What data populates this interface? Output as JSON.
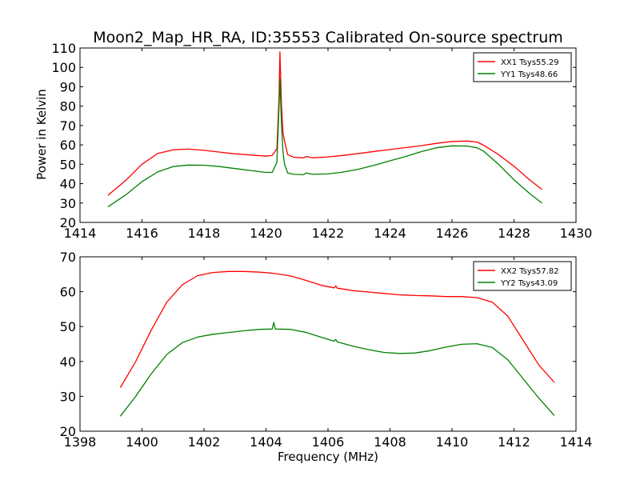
{
  "chart_data": [
    {
      "type": "line",
      "title": "Moon2_Map_HR_RA, ID:35553 Calibrated On-source spectrum",
      "xlabel": "",
      "ylabel": "Power in Kelvin",
      "xlim": [
        1414,
        1430
      ],
      "ylim": [
        20,
        110
      ],
      "xticks": [
        1414,
        1416,
        1418,
        1420,
        1422,
        1424,
        1426,
        1428,
        1430
      ],
      "yticks": [
        20,
        30,
        40,
        50,
        60,
        70,
        80,
        90,
        100,
        110
      ],
      "legend": "top-right",
      "series": [
        {
          "name": "XX1 Tsys55.29",
          "color": "#ff0000",
          "x": [
            1414.9,
            1415.5,
            1416.0,
            1416.5,
            1417.0,
            1417.5,
            1418.0,
            1418.5,
            1419.0,
            1419.5,
            1420.0,
            1420.2,
            1420.35,
            1420.42,
            1420.45,
            1420.5,
            1420.55,
            1420.6,
            1420.7,
            1420.9,
            1421.2,
            1421.3,
            1421.5,
            1422.0,
            1422.5,
            1423.0,
            1423.5,
            1424.0,
            1424.5,
            1425.0,
            1425.5,
            1426.0,
            1426.5,
            1426.8,
            1427.0,
            1427.5,
            1428.0,
            1428.5,
            1428.9
          ],
          "y": [
            34,
            42,
            50,
            55.5,
            57.5,
            57.8,
            57.2,
            56.3,
            55.4,
            54.8,
            54.2,
            54.5,
            58,
            85,
            108,
            80,
            66,
            62,
            55,
            53.6,
            53.3,
            54,
            53.3,
            53.8,
            54.6,
            55.6,
            56.6,
            57.6,
            58.6,
            59.6,
            60.8,
            61.8,
            62,
            61.5,
            60,
            55,
            49,
            42,
            37
          ]
        },
        {
          "name": "YY1 Tsys48.66",
          "color": "#008000",
          "x": [
            1414.9,
            1415.5,
            1416.0,
            1416.5,
            1417.0,
            1417.5,
            1418.0,
            1418.5,
            1419.0,
            1419.5,
            1420.0,
            1420.2,
            1420.35,
            1420.42,
            1420.45,
            1420.5,
            1420.55,
            1420.6,
            1420.7,
            1420.9,
            1421.2,
            1421.3,
            1421.5,
            1422.0,
            1422.5,
            1423.0,
            1423.5,
            1424.0,
            1424.5,
            1425.0,
            1425.5,
            1426.0,
            1426.5,
            1426.8,
            1427.0,
            1427.5,
            1428.0,
            1428.5,
            1428.9
          ],
          "y": [
            28,
            34.5,
            41,
            46,
            48.8,
            49.6,
            49.5,
            48.8,
            47.8,
            46.8,
            45.8,
            45.8,
            51,
            80,
            94,
            70,
            56,
            50,
            45.5,
            44.8,
            44.6,
            45.5,
            44.8,
            45,
            46,
            47.5,
            49.5,
            51.8,
            54,
            56.5,
            58.5,
            59.5,
            59.4,
            58.5,
            57,
            50,
            42,
            35,
            30
          ]
        }
      ]
    },
    {
      "type": "line",
      "title": "",
      "xlabel": "Frequency (MHz)",
      "ylabel": "",
      "xlim": [
        1398,
        1414
      ],
      "ylim": [
        20,
        70
      ],
      "xticks": [
        1398,
        1400,
        1402,
        1404,
        1406,
        1408,
        1410,
        1412,
        1414
      ],
      "yticks": [
        20,
        30,
        40,
        50,
        60,
        70
      ],
      "legend": "top-right",
      "series": [
        {
          "name": "XX2 Tsys57.82",
          "color": "#ff0000",
          "x": [
            1399.3,
            1399.8,
            1400.3,
            1400.8,
            1401.3,
            1401.8,
            1402.3,
            1402.8,
            1403.3,
            1403.8,
            1404.3,
            1404.8,
            1405.3,
            1405.8,
            1406.2,
            1406.25,
            1406.3,
            1406.8,
            1407.3,
            1407.8,
            1408.3,
            1408.8,
            1409.3,
            1409.8,
            1410.3,
            1410.8,
            1411.3,
            1411.8,
            1412.3,
            1412.8,
            1413.3
          ],
          "y": [
            32.5,
            40,
            49,
            57,
            62,
            64.6,
            65.5,
            65.8,
            65.8,
            65.6,
            65.2,
            64.5,
            63.2,
            61.8,
            61.1,
            61.7,
            61,
            60.3,
            59.9,
            59.5,
            59.1,
            58.9,
            58.8,
            58.6,
            58.6,
            58.3,
            57,
            53,
            46,
            39,
            34
          ]
        },
        {
          "name": "YY2 Tsys43.09",
          "color": "#008000",
          "x": [
            1399.3,
            1399.8,
            1400.3,
            1400.8,
            1401.3,
            1401.8,
            1402.3,
            1402.8,
            1403.3,
            1403.8,
            1404.2,
            1404.25,
            1404.3,
            1404.8,
            1405.3,
            1405.8,
            1406.2,
            1406.25,
            1406.3,
            1406.8,
            1407.3,
            1407.8,
            1408.3,
            1408.8,
            1409.3,
            1409.8,
            1410.3,
            1410.8,
            1411.3,
            1411.8,
            1412.3,
            1412.8,
            1413.3
          ],
          "y": [
            24.3,
            30,
            36.5,
            42,
            45.4,
            47,
            47.8,
            48.3,
            48.8,
            49.2,
            49.3,
            51.2,
            49.3,
            49.2,
            48.3,
            46.9,
            45.8,
            46.3,
            45.6,
            44.4,
            43.4,
            42.6,
            42.3,
            42.4,
            43.1,
            44.1,
            44.9,
            45.1,
            44,
            40.5,
            35,
            29.5,
            24.5
          ]
        }
      ]
    }
  ]
}
